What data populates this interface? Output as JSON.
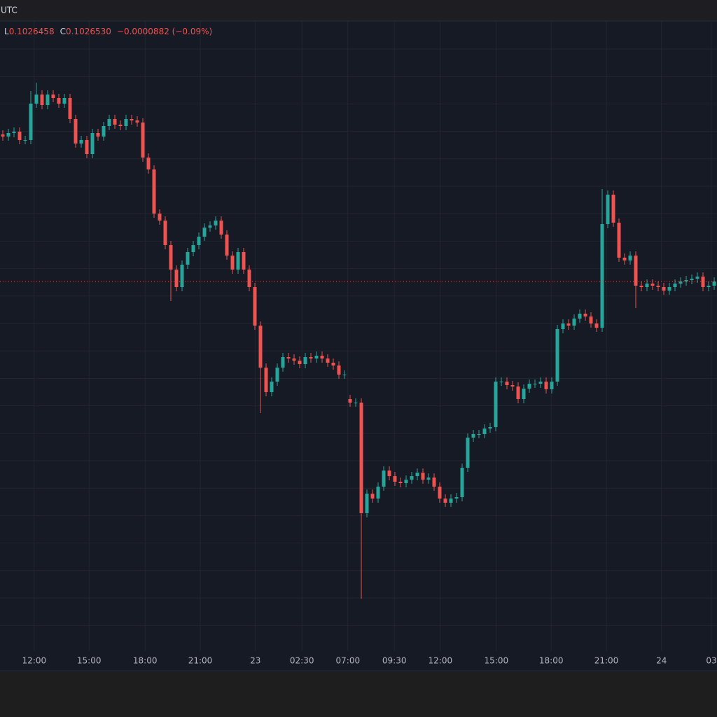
{
  "chart_data": {
    "type": "candlestick",
    "timezone": "UTC",
    "ohlc_labels": [
      {
        "key": "L",
        "value": "0.1026458"
      },
      {
        "key": "C",
        "value": "0.1026530"
      }
    ],
    "change": "−0.0000882 (−0.09%)",
    "up_color": "#26a69a",
    "down_color": "#ef5350",
    "grid": true,
    "xlim": [
      -0.5,
      127.5
    ],
    "ylim": [
      0,
      900
    ],
    "xticks": [
      {
        "value": 5.6,
        "label": "12:00"
      },
      {
        "value": 15.4,
        "label": "15:00"
      },
      {
        "value": 25.4,
        "label": "18:00"
      },
      {
        "value": 35.25,
        "label": "21:00"
      },
      {
        "value": 45.1,
        "label": "23"
      },
      {
        "value": 53.4,
        "label": "02:30"
      },
      {
        "value": 61.6,
        "label": "07:00"
      },
      {
        "value": 69.9,
        "label": "09:30"
      },
      {
        "value": 78.1,
        "label": "12:00"
      },
      {
        "value": 88.1,
        "label": "15:00"
      },
      {
        "value": 97.9,
        "label": "18:00"
      },
      {
        "value": 107.75,
        "label": "21:00"
      },
      {
        "value": 117.6,
        "label": "24"
      },
      {
        "value": 126.5,
        "label": "03"
      }
    ],
    "open": [
      738,
      735,
      740,
      742,
      730,
      730,
      782,
      795,
      780,
      795,
      790,
      782,
      790,
      760,
      725,
      730,
      710,
      740,
      735,
      750,
      760,
      752,
      750,
      760,
      758,
      755,
      705,
      688,
      625,
      615,
      580,
      545,
      520,
      552,
      570,
      580,
      592,
      605,
      608,
      615,
      595,
      565,
      545,
      570,
      545,
      520,
      465,
      405,
      370,
      385,
      405,
      420,
      418,
      415,
      410,
      420,
      418,
      422,
      418,
      412,
      408,
      395,
      360,
      355,
      355,
      197,
      225,
      218,
      235,
      258,
      250,
      242,
      240,
      245,
      250,
      255,
      245,
      248,
      235,
      218,
      212,
      218,
      220,
      262,
      305,
      310,
      310,
      318,
      320,
      385,
      385,
      380,
      378,
      360,
      375,
      382,
      382,
      385,
      374,
      385,
      460,
      468,
      465,
      475,
      482,
      478,
      468,
      462,
      610,
      652,
      612,
      562,
      558,
      565,
      522,
      520,
      525,
      522,
      520,
      515,
      520,
      525,
      528,
      530,
      532,
      535,
      520,
      522
    ],
    "high": [
      744,
      746,
      748,
      748,
      736,
      800,
      812,
      801,
      801,
      801,
      796,
      796,
      796,
      766,
      736,
      736,
      746,
      746,
      756,
      766,
      766,
      758,
      766,
      766,
      764,
      761,
      711,
      694,
      631,
      621,
      586,
      551,
      558,
      576,
      586,
      598,
      611,
      614,
      621,
      621,
      601,
      571,
      576,
      576,
      551,
      526,
      471,
      411,
      391,
      411,
      426,
      426,
      424,
      421,
      426,
      426,
      428,
      428,
      424,
      418,
      414,
      401,
      366,
      361,
      361,
      231,
      231,
      241,
      264,
      264,
      256,
      248,
      251,
      256,
      261,
      261,
      254,
      254,
      241,
      224,
      224,
      226,
      268,
      311,
      316,
      316,
      324,
      326,
      391,
      391,
      391,
      386,
      384,
      381,
      388,
      388,
      391,
      391,
      391,
      466,
      474,
      474,
      481,
      488,
      488,
      484,
      474,
      660,
      658,
      658,
      618,
      568,
      571,
      571,
      528,
      531,
      531,
      528,
      526,
      526,
      531,
      534,
      536,
      538,
      541,
      541,
      528,
      534
    ],
    "low": [
      729,
      729,
      734,
      724,
      724,
      724,
      776,
      774,
      774,
      784,
      776,
      776,
      754,
      719,
      719,
      704,
      704,
      729,
      729,
      744,
      746,
      744,
      744,
      752,
      749,
      699,
      682,
      619,
      609,
      574,
      500,
      514,
      514,
      546,
      564,
      574,
      586,
      599,
      602,
      589,
      559,
      539,
      539,
      539,
      514,
      459,
      340,
      364,
      364,
      379,
      399,
      412,
      409,
      404,
      404,
      412,
      412,
      412,
      406,
      402,
      389,
      389,
      349,
      349,
      75,
      191,
      212,
      212,
      229,
      244,
      236,
      234,
      234,
      239,
      244,
      239,
      239,
      229,
      212,
      206,
      206,
      212,
      214,
      256,
      299,
      304,
      304,
      312,
      314,
      379,
      374,
      372,
      354,
      354,
      369,
      376,
      376,
      368,
      368,
      379,
      454,
      459,
      459,
      469,
      472,
      462,
      456,
      456,
      604,
      606,
      556,
      552,
      552,
      490,
      514,
      514,
      516,
      514,
      509,
      509,
      514,
      519,
      522,
      524,
      526,
      514,
      514,
      516
    ],
    "close": [
      735,
      740,
      742,
      730,
      730,
      782,
      795,
      780,
      795,
      790,
      782,
      790,
      760,
      725,
      730,
      710,
      740,
      735,
      750,
      760,
      752,
      750,
      760,
      758,
      755,
      705,
      688,
      625,
      615,
      580,
      545,
      520,
      552,
      570,
      580,
      592,
      605,
      608,
      615,
      595,
      565,
      545,
      570,
      545,
      520,
      465,
      405,
      370,
      385,
      405,
      420,
      418,
      415,
      410,
      420,
      418,
      422,
      418,
      412,
      408,
      395,
      395,
      355,
      355,
      197,
      225,
      218,
      235,
      258,
      250,
      242,
      240,
      245,
      250,
      255,
      245,
      248,
      235,
      218,
      212,
      218,
      220,
      262,
      305,
      310,
      310,
      318,
      320,
      385,
      385,
      380,
      378,
      360,
      375,
      382,
      382,
      385,
      374,
      385,
      460,
      468,
      465,
      475,
      482,
      478,
      468,
      462,
      610,
      652,
      612,
      562,
      558,
      565,
      522,
      520,
      525,
      522,
      520,
      515,
      520,
      525,
      528,
      530,
      532,
      535,
      520,
      522,
      528
    ]
  }
}
